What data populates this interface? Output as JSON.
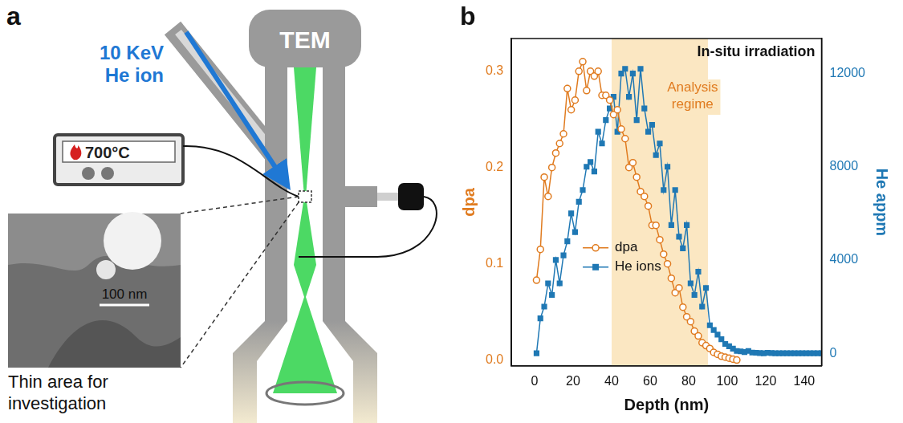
{
  "panel_a": {
    "letter": "a",
    "ion_beam": "10 KeV He ion",
    "heater": "700°C",
    "instrument": "TEM",
    "scale_bar": "100 nm",
    "caption": "Thin area for investigation"
  },
  "chart_data": {
    "letter": "b",
    "type": "line",
    "title": "In-situ irradiation",
    "x_label": "Depth (nm)",
    "y_label": "dpa",
    "y2_label": "He appm",
    "xlim": [
      -12,
      149
    ],
    "xticks": [
      0,
      20,
      40,
      60,
      80,
      100,
      120,
      140
    ],
    "ylim": [
      -0.006,
      0.334
    ],
    "yticks": [
      {
        "value": 0,
        "label": "0.0"
      },
      0.1,
      0.2,
      0.3
    ],
    "y2lim": [
      -540,
      13500
    ],
    "y2ticks": [
      0,
      4000,
      8000,
      12000
    ],
    "grid": false,
    "legend": "left",
    "annotations": [
      {
        "label": "Analysis regime",
        "x_range": [
          40,
          90
        ]
      }
    ],
    "x": [
      1,
      3,
      5,
      7,
      9,
      11,
      13,
      15,
      17,
      19,
      21,
      23,
      25,
      27,
      29,
      31,
      33,
      35,
      37,
      39,
      41,
      43,
      45,
      47,
      49,
      51,
      53,
      55,
      57,
      59,
      61,
      63,
      65,
      67,
      69,
      71,
      73,
      75,
      77,
      79,
      81,
      83,
      85,
      87,
      89,
      91,
      93,
      95,
      97,
      99,
      101,
      103,
      105,
      107,
      109,
      111,
      113,
      115,
      117,
      119,
      121,
      123,
      125,
      127,
      129,
      131,
      133,
      135,
      137,
      139,
      141,
      143,
      145,
      147,
      149
    ],
    "series": [
      {
        "name": "dpa",
        "color": "#e07b1f",
        "marker": "open_circle",
        "line_style": "solid",
        "values": [
          0.083,
          0.115,
          0.19,
          0.17,
          0.2,
          0.215,
          0.225,
          0.235,
          0.282,
          0.26,
          0.27,
          0.3,
          0.31,
          0.28,
          0.3,
          0.295,
          0.3,
          0.275,
          0.275,
          0.27,
          0.255,
          0.26,
          0.24,
          0.23,
          0.2,
          0.205,
          0.19,
          0.175,
          0.17,
          0.16,
          0.14,
          0.14,
          0.125,
          0.11,
          0.1,
          0.085,
          0.07,
          0.075,
          0.055,
          0.045,
          0.04,
          0.03,
          0.025,
          0.018,
          0.015,
          0.012,
          0.008,
          0.006,
          0.004,
          0.003,
          0.002,
          0.001,
          0,
          null,
          null,
          null,
          null,
          null,
          null,
          null,
          null,
          null,
          null,
          null,
          null,
          null,
          null,
          null,
          null,
          null,
          null,
          null,
          null,
          null,
          null
        ]
      },
      {
        "name": "He ions",
        "color": "#1f78b4",
        "marker": "square",
        "line_style": "solid",
        "axis": "y2",
        "values": [
          0,
          1500,
          2000,
          3000,
          2500,
          4000,
          3000,
          4200,
          4800,
          6000,
          5200,
          6500,
          7000,
          8000,
          8200,
          7800,
          9500,
          9000,
          10000,
          10500,
          11000,
          9500,
          12000,
          12200,
          11000,
          12000,
          10000,
          12200,
          10500,
          9500,
          9800,
          8500,
          9000,
          7000,
          8000,
          5500,
          7000,
          5000,
          4500,
          5500,
          3000,
          2500,
          3500,
          2000,
          2800,
          1200,
          1000,
          800,
          600,
          400,
          300,
          200,
          100,
          80,
          50,
          100,
          30,
          20,
          10,
          0,
          20,
          10,
          0,
          0,
          0,
          0,
          0,
          0,
          0,
          0,
          0,
          0,
          0,
          0,
          0
        ]
      }
    ]
  }
}
